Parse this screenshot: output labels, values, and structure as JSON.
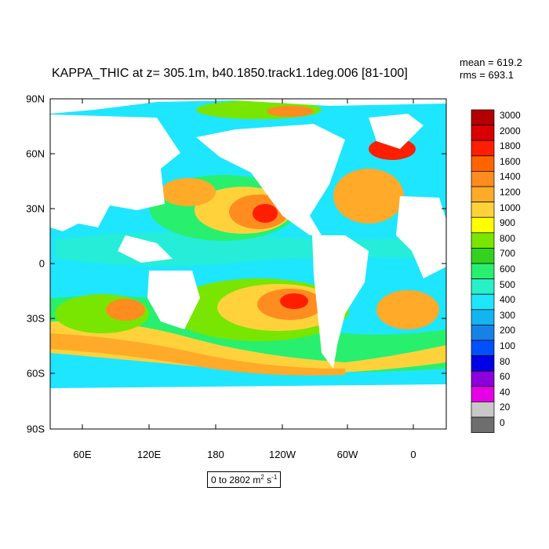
{
  "title": "KAPPA_THIC at z= 305.1m, b40.1850.track1.1deg.006 [81-100]",
  "stats": {
    "mean": "mean = 619.2",
    "rms": "rms = 693.1"
  },
  "lat_labels": [
    "90N",
    "60N",
    "30N",
    "0",
    "30S",
    "60S",
    "90S"
  ],
  "lon_labels": [
    "60E",
    "120E",
    "180",
    "120W",
    "60W",
    "0"
  ],
  "range_label": {
    "text": "0 to 2802 m",
    "sup1": "2",
    "mid": " s",
    "sup2": "-1"
  },
  "colorbar": {
    "labels": [
      "3000",
      "2000",
      "1800",
      "1600",
      "1400",
      "1200",
      "1000",
      "900",
      "800",
      "700",
      "600",
      "500",
      "400",
      "300",
      "200",
      "100",
      "80",
      "60",
      "40",
      "20",
      "0"
    ],
    "colors": [
      "#b30000",
      "#d80000",
      "#ff1e00",
      "#ff6400",
      "#ff8c1e",
      "#ffaa28",
      "#ffd23c",
      "#ffff00",
      "#78e600",
      "#32d21e",
      "#28f06e",
      "#28f0c8",
      "#1ee6ff",
      "#14b4f0",
      "#1482e6",
      "#0050ff",
      "#0000e6",
      "#8c00dc",
      "#e600e6",
      "#c8c8c8",
      "#6e6e6e"
    ]
  },
  "colors": {
    "ocean_base": "#1ee6ff",
    "land": "#ffffff",
    "frame": "#000000"
  }
}
